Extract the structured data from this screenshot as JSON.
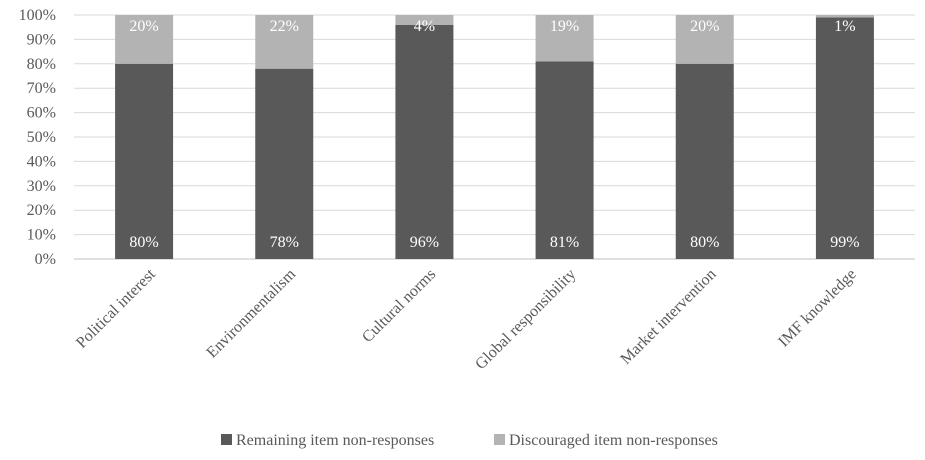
{
  "chart_data": {
    "type": "bar",
    "stacked": true,
    "percent": true,
    "categories": [
      "Political interest",
      "Environmentalism",
      "Cultural norms",
      "Global responsibility",
      "Market intervention",
      "IMF knowledge"
    ],
    "series": [
      {
        "name": "Remaining item non-responses",
        "values": [
          80,
          78,
          96,
          81,
          80,
          99
        ],
        "labels": [
          "80%",
          "78%",
          "96%",
          "81%",
          "80%",
          "99%"
        ],
        "color": "#595959"
      },
      {
        "name": "Discouraged item non-responses",
        "values": [
          20,
          22,
          4,
          19,
          20,
          1
        ],
        "labels": [
          "20%",
          "22%",
          "4%",
          "19%",
          "20%",
          "1%"
        ],
        "color": "#b3b3b3"
      }
    ],
    "y_ticks": [
      "0%",
      "10%",
      "20%",
      "30%",
      "40%",
      "50%",
      "60%",
      "70%",
      "80%",
      "90%",
      "100%"
    ],
    "ylim": [
      0,
      100
    ],
    "grid": true,
    "legend_position": "bottom"
  }
}
